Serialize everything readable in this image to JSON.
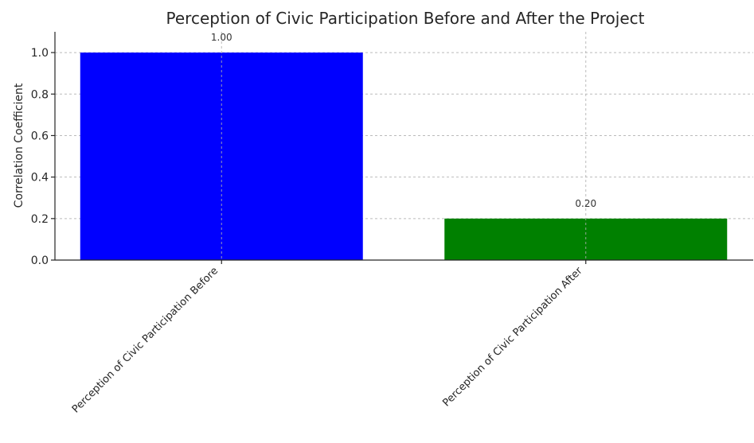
{
  "chart_data": {
    "type": "bar",
    "title": "Perception of Civic Participation Before and After the Project",
    "xlabel": "",
    "ylabel": "Correlation Coefficient",
    "categories": [
      "Perception of Civic Participation Before",
      "Perception of Civic Participation After"
    ],
    "values": [
      1.0,
      0.2
    ],
    "data_labels": [
      "1.00",
      "0.20"
    ],
    "colors": [
      "#0000ff",
      "#008000"
    ],
    "ylim": [
      0,
      1.1
    ],
    "yticks": [
      0.0,
      0.2,
      0.4,
      0.6,
      0.8,
      1.0
    ],
    "ytick_labels": [
      "0.0",
      "0.2",
      "0.4",
      "0.6",
      "0.8",
      "1.0"
    ],
    "grid": true,
    "legend": "none"
  }
}
